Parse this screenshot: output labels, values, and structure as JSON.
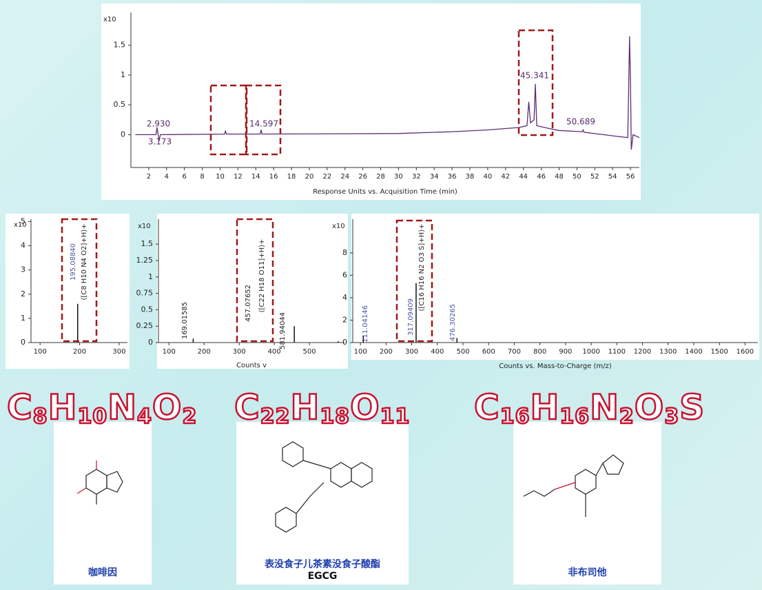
{
  "chart_data": [
    {
      "type": "line",
      "y_label": "x10",
      "x_label": "Response Units vs. Acquisition Time (min)",
      "x": [
        0.5,
        2.8,
        2.93,
        3.05,
        3.173,
        3.3,
        10.5,
        10.6,
        10.7,
        14.5,
        14.597,
        14.7,
        30,
        36,
        40,
        43.5,
        44.4,
        44.6,
        44.8,
        45.2,
        45.341,
        45.5,
        47,
        48,
        50.6,
        50.689,
        50.8,
        53,
        55.7,
        55.9,
        56.0,
        56.1,
        56.3,
        57
      ],
      "series": [
        {
          "color": "#5b2b72",
          "values": [
            0,
            0,
            0.12,
            0,
            -0.1,
            0,
            0.01,
            0.06,
            0.01,
            0.01,
            0.08,
            0.01,
            0.02,
            0.05,
            0.08,
            0.12,
            0.15,
            0.55,
            0.2,
            0.25,
            0.85,
            0.15,
            0.1,
            0.07,
            0.05,
            0.08,
            0.04,
            0.0,
            -0.05,
            1.65,
            0.9,
            -0.25,
            0.0,
            -0.05
          ]
        }
      ],
      "annotations": [
        "2.930",
        "3.173",
        "14.597",
        "45.341",
        "50.689"
      ],
      "xlim": [
        0,
        57
      ],
      "ylim": [
        -0.55,
        2.05
      ],
      "xticks": [
        2,
        4,
        6,
        8,
        10,
        12,
        14,
        16,
        18,
        20,
        22,
        24,
        26,
        28,
        30,
        32,
        34,
        36,
        38,
        40,
        42,
        44,
        46,
        48,
        50,
        52,
        54,
        56
      ],
      "yticks": [
        0,
        0.5,
        1,
        1.5
      ]
    },
    {
      "type": "stem",
      "y_label": "x10",
      "color": "#111111",
      "x": [
        195.0884
      ],
      "values": [
        1.6
      ],
      "x_labels": [
        "195.08840"
      ],
      "annotations": [
        "([C8 H10 N4 O2]+H)+"
      ],
      "xlim": [
        77,
        321
      ],
      "ylim": [
        0,
        5.1
      ],
      "xticks": [
        100,
        200,
        300
      ],
      "yticks": [
        0,
        1,
        2,
        3,
        4,
        5
      ]
    },
    {
      "type": "stem",
      "y_label": "x10",
      "x_label": "Counts v",
      "color": "#111111",
      "x": [
        169.01585,
        457.07652,
        581.94044
      ],
      "values": [
        0.06,
        0.25,
        0.02
      ],
      "x_labels": [
        "169.01585",
        "457.07652",
        "581.94044"
      ],
      "annotations": [
        "([C22 H18 O11]+H)+"
      ],
      "xlim": [
        70,
        600
      ],
      "ylim": [
        0,
        1.88
      ],
      "xticks": [
        100,
        200,
        300,
        400,
        500
      ],
      "yticks": [
        0,
        0.25,
        0.5,
        0.75,
        1,
        1.25,
        1.5
      ]
    },
    {
      "type": "stem",
      "y_label": "x10",
      "x_label": "Counts vs. Mass-to-Charge (m/z)",
      "color": "#111111",
      "x": [
        111.04146,
        317.09409,
        476.30265
      ],
      "values": [
        0.6,
        5.3,
        0.4
      ],
      "x_labels": [
        "111.04146",
        "317.09409",
        "476.30265"
      ],
      "annotations": [
        "([C16 H16 N2 O3 S]+H)+"
      ],
      "xlim": [
        70,
        1650
      ],
      "ylim": [
        0,
        11
      ],
      "xticks": [
        100,
        200,
        300,
        400,
        500,
        600,
        700,
        800,
        900,
        1000,
        1100,
        1200,
        1300,
        1400,
        1500,
        1600
      ],
      "yticks": [
        0,
        2,
        4,
        6,
        8
      ]
    }
  ],
  "compounds": [
    {
      "formula": "C8H10N4O2",
      "name": "咖啡因"
    },
    {
      "formula": "C22H18O11",
      "name": "表没食子儿茶素没食子酸酯",
      "abbreviation": "EGCG"
    },
    {
      "formula": "C16H16N2O3S",
      "name": "非布司他"
    }
  ]
}
